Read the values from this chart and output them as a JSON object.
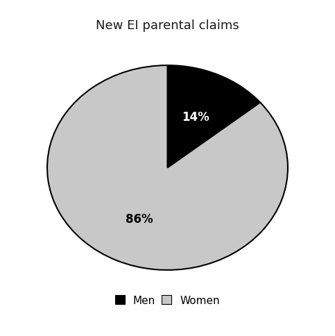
{
  "title": "New EI parental claims",
  "slices": [
    14,
    86
  ],
  "labels": [
    "Men",
    "Women"
  ],
  "colors": [
    "#000000",
    "#c8c8c8"
  ],
  "pct_labels": [
    "14%",
    "86%"
  ],
  "pct_colors": [
    "#ffffff",
    "#000000"
  ],
  "startangle": 90,
  "title_fontsize": 13,
  "pct_fontsize": 12,
  "legend_fontsize": 11,
  "background_color": "#ffffff",
  "title_color": "#1a1a1a"
}
